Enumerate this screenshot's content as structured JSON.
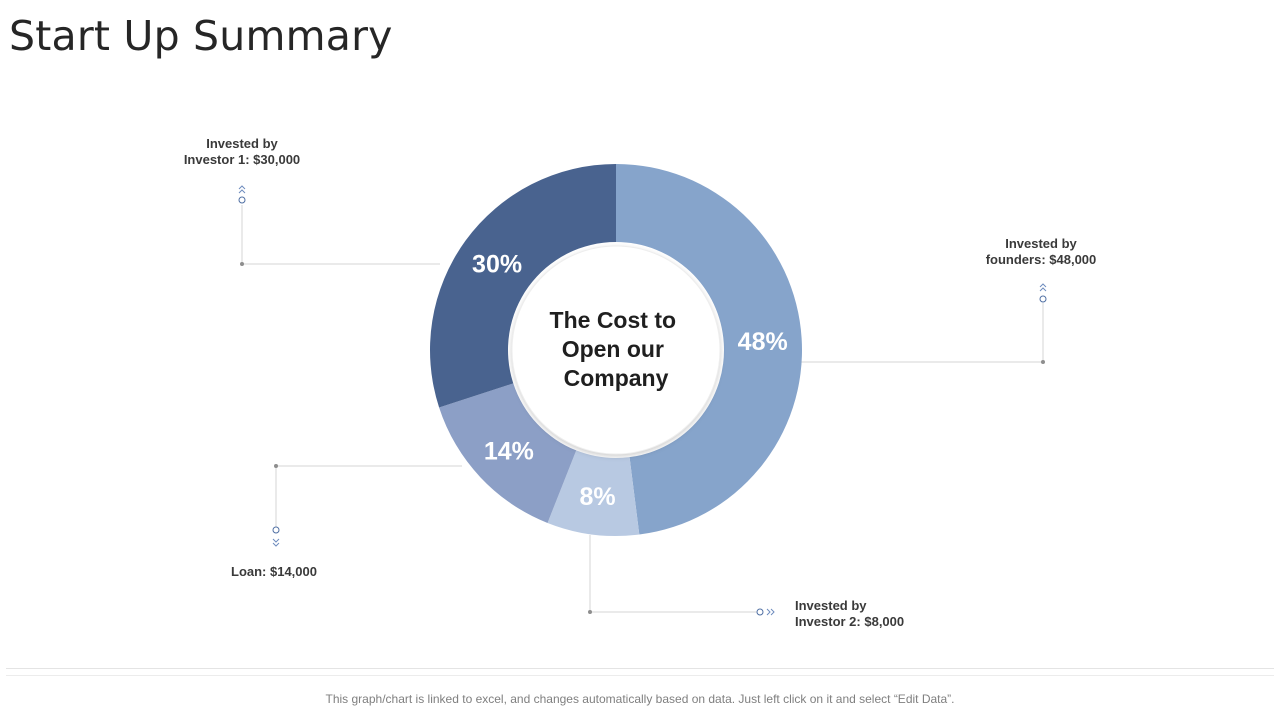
{
  "page": {
    "title": "Start Up Summary",
    "footer_note": "This graph/chart is linked to excel, and changes automatically based on data. Just left click on it and select “Edit Data”."
  },
  "chart_data": {
    "type": "pie",
    "variant": "donut",
    "center_label": [
      "The Cost to",
      "Open our",
      "Company"
    ],
    "slices": [
      {
        "id": "founders",
        "label_lines": [
          "Invested by",
          "founders: $48,000"
        ],
        "amount": 48000,
        "percent": 48,
        "percent_label": "48%",
        "color": "#86a4cb"
      },
      {
        "id": "investor2",
        "label_lines": [
          "Invested by",
          "Investor 2: $8,000"
        ],
        "amount": 8000,
        "percent": 8,
        "percent_label": "8%",
        "color": "#b8c9e2"
      },
      {
        "id": "loan",
        "label_lines": [
          "Loan: $14,000"
        ],
        "amount": 14000,
        "percent": 14,
        "percent_label": "14%",
        "color": "#8c9fc6"
      },
      {
        "id": "investor1",
        "label_lines": [
          "Invested by",
          "Investor 1: $30,000"
        ],
        "amount": 30000,
        "percent": 30,
        "percent_label": "30%",
        "color": "#49638f"
      }
    ]
  }
}
